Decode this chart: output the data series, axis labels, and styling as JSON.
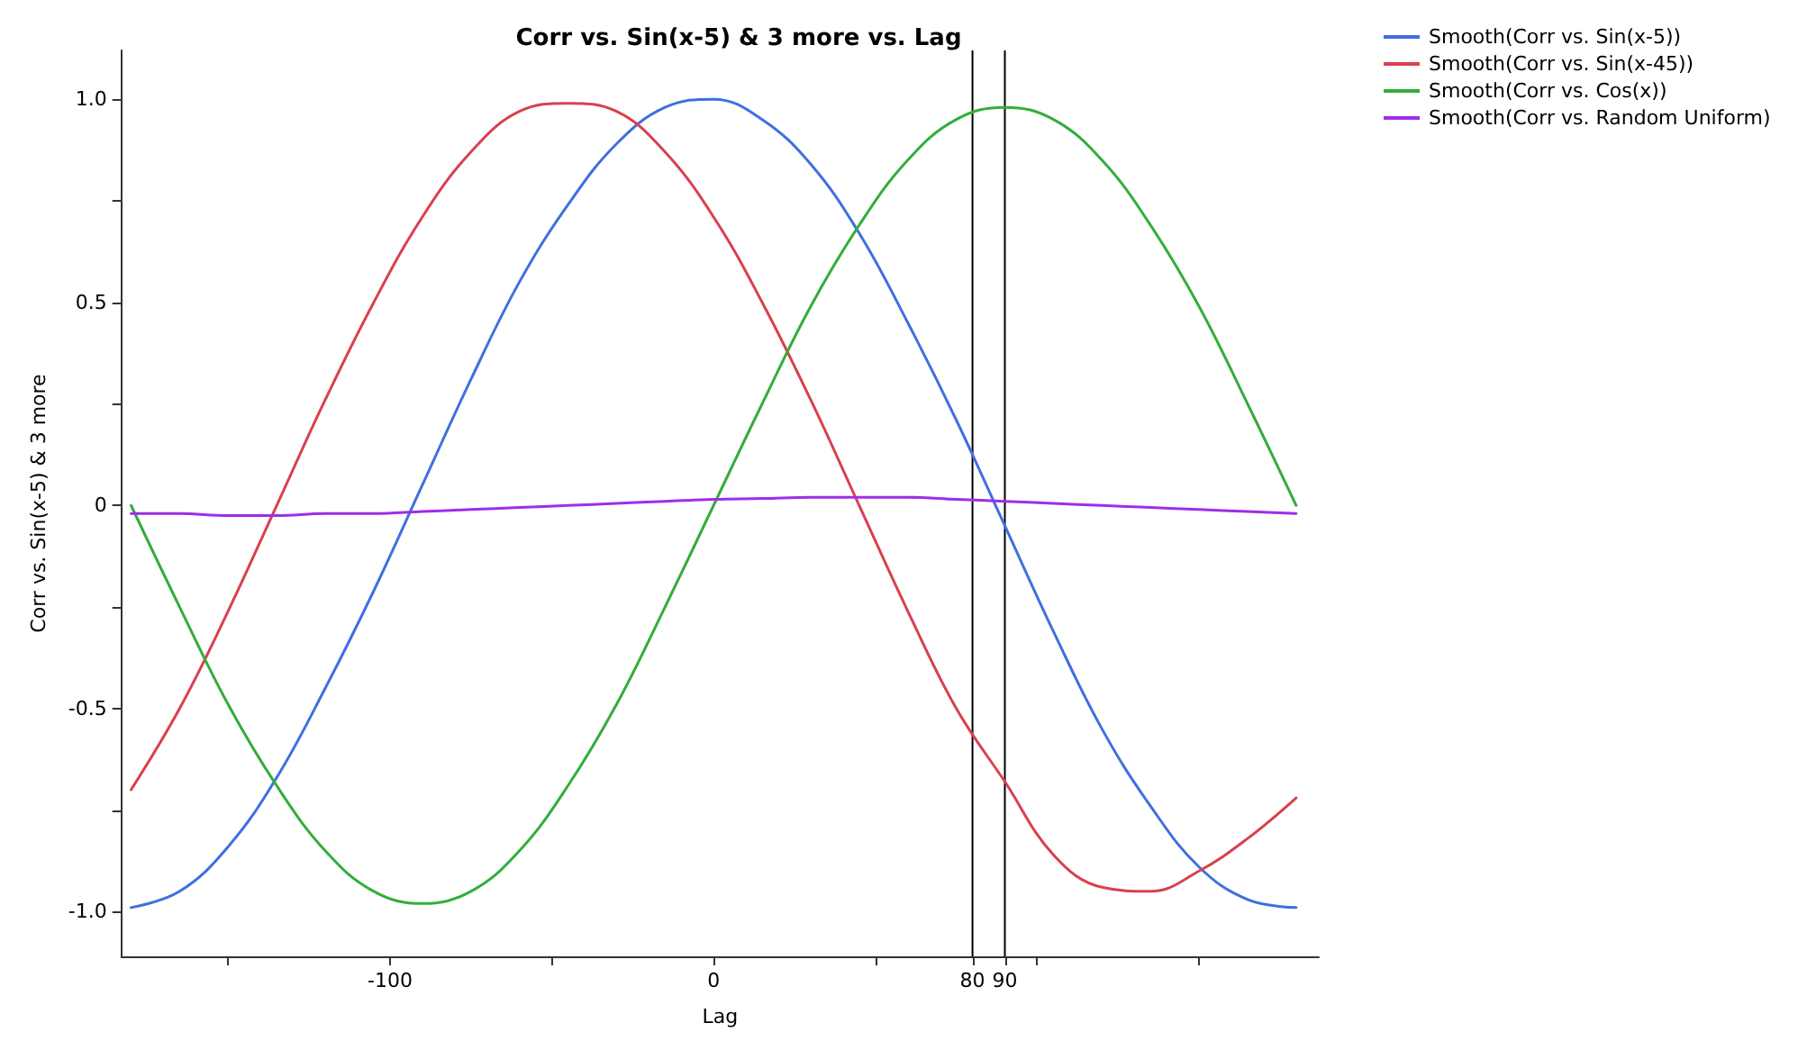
{
  "chart_data": {
    "type": "line",
    "title": "Corr vs. Sin(x-5) & 3 more vs. Lag",
    "xlabel": "Lag",
    "ylabel": "Corr vs. Sin(x-5) & 3 more",
    "x": [
      -180,
      -165,
      -150,
      -135,
      -120,
      -105,
      -90,
      -75,
      -60,
      -45,
      -30,
      -15,
      0,
      15,
      30,
      45,
      60,
      75,
      90,
      105,
      120,
      135,
      150,
      165,
      180
    ],
    "series": [
      {
        "name": "Smooth(Corr vs. Sin(x-5))",
        "color": "#3f6fe0",
        "values": [
          -0.99,
          -0.95,
          -0.84,
          -0.67,
          -0.45,
          -0.21,
          0.05,
          0.31,
          0.55,
          0.74,
          0.89,
          0.98,
          1.0,
          0.95,
          0.84,
          0.67,
          0.45,
          0.21,
          -0.05,
          -0.31,
          -0.55,
          -0.74,
          -0.89,
          -0.97,
          -0.99
        ]
      },
      {
        "name": "Smooth(Corr vs. Sin(x-45))",
        "color": "#d9404f",
        "values": [
          -0.7,
          -0.5,
          -0.26,
          0,
          0.26,
          0.5,
          0.71,
          0.87,
          0.97,
          0.99,
          0.97,
          0.87,
          0.71,
          0.5,
          0.26,
          0,
          -0.26,
          -0.5,
          -0.68,
          -0.86,
          -0.94,
          -0.95,
          -0.9,
          -0.82,
          -0.72
        ]
      },
      {
        "name": "Smooth(Corr vs. Cos(x))",
        "color": "#33ad3a",
        "values": [
          0,
          -0.25,
          -0.49,
          -0.69,
          -0.85,
          -0.95,
          -0.98,
          -0.95,
          -0.85,
          -0.69,
          -0.49,
          -0.25,
          0,
          0.25,
          0.49,
          0.69,
          0.85,
          0.95,
          0.98,
          0.95,
          0.85,
          0.69,
          0.49,
          0.25,
          0
        ]
      },
      {
        "name": "Smooth(Corr vs. Random Uniform)",
        "color": "#a02ce8",
        "values": [
          -0.02,
          -0.02,
          -0.025,
          -0.025,
          -0.02,
          -0.02,
          -0.015,
          -0.01,
          -0.005,
          0,
          0.005,
          0.01,
          0.015,
          0.017,
          0.02,
          0.02,
          0.02,
          0.015,
          0.01,
          0.005,
          0,
          -0.005,
          -0.01,
          -0.015,
          -0.02
        ]
      }
    ],
    "xlim": [
      -183,
      187
    ],
    "xticks": [
      {
        "value": -150,
        "label": null
      },
      -100,
      {
        "value": -50,
        "label": null
      },
      0,
      {
        "value": 50,
        "label": null
      },
      80,
      90,
      {
        "value": 100,
        "label": null
      },
      {
        "value": 150,
        "label": null
      }
    ],
    "ylim": [
      -1.11,
      1.12
    ],
    "yticks": [
      {
        "value": -1,
        "label": "-1.0"
      },
      {
        "value": -0.75,
        "label": null
      },
      -0.5,
      {
        "value": -0.25,
        "label": null
      },
      0,
      {
        "value": 0.25,
        "label": null
      },
      0.5,
      {
        "value": 0.75,
        "label": null
      },
      {
        "value": 1,
        "label": "1.0"
      }
    ],
    "ref_lines": [
      {
        "axis": "x",
        "value": 80,
        "color": "#000000"
      },
      {
        "axis": "x",
        "value": 90,
        "color": "#000000"
      }
    ],
    "grid": false,
    "legend": "top right",
    "marker": "none",
    "line_style": "solid"
  }
}
